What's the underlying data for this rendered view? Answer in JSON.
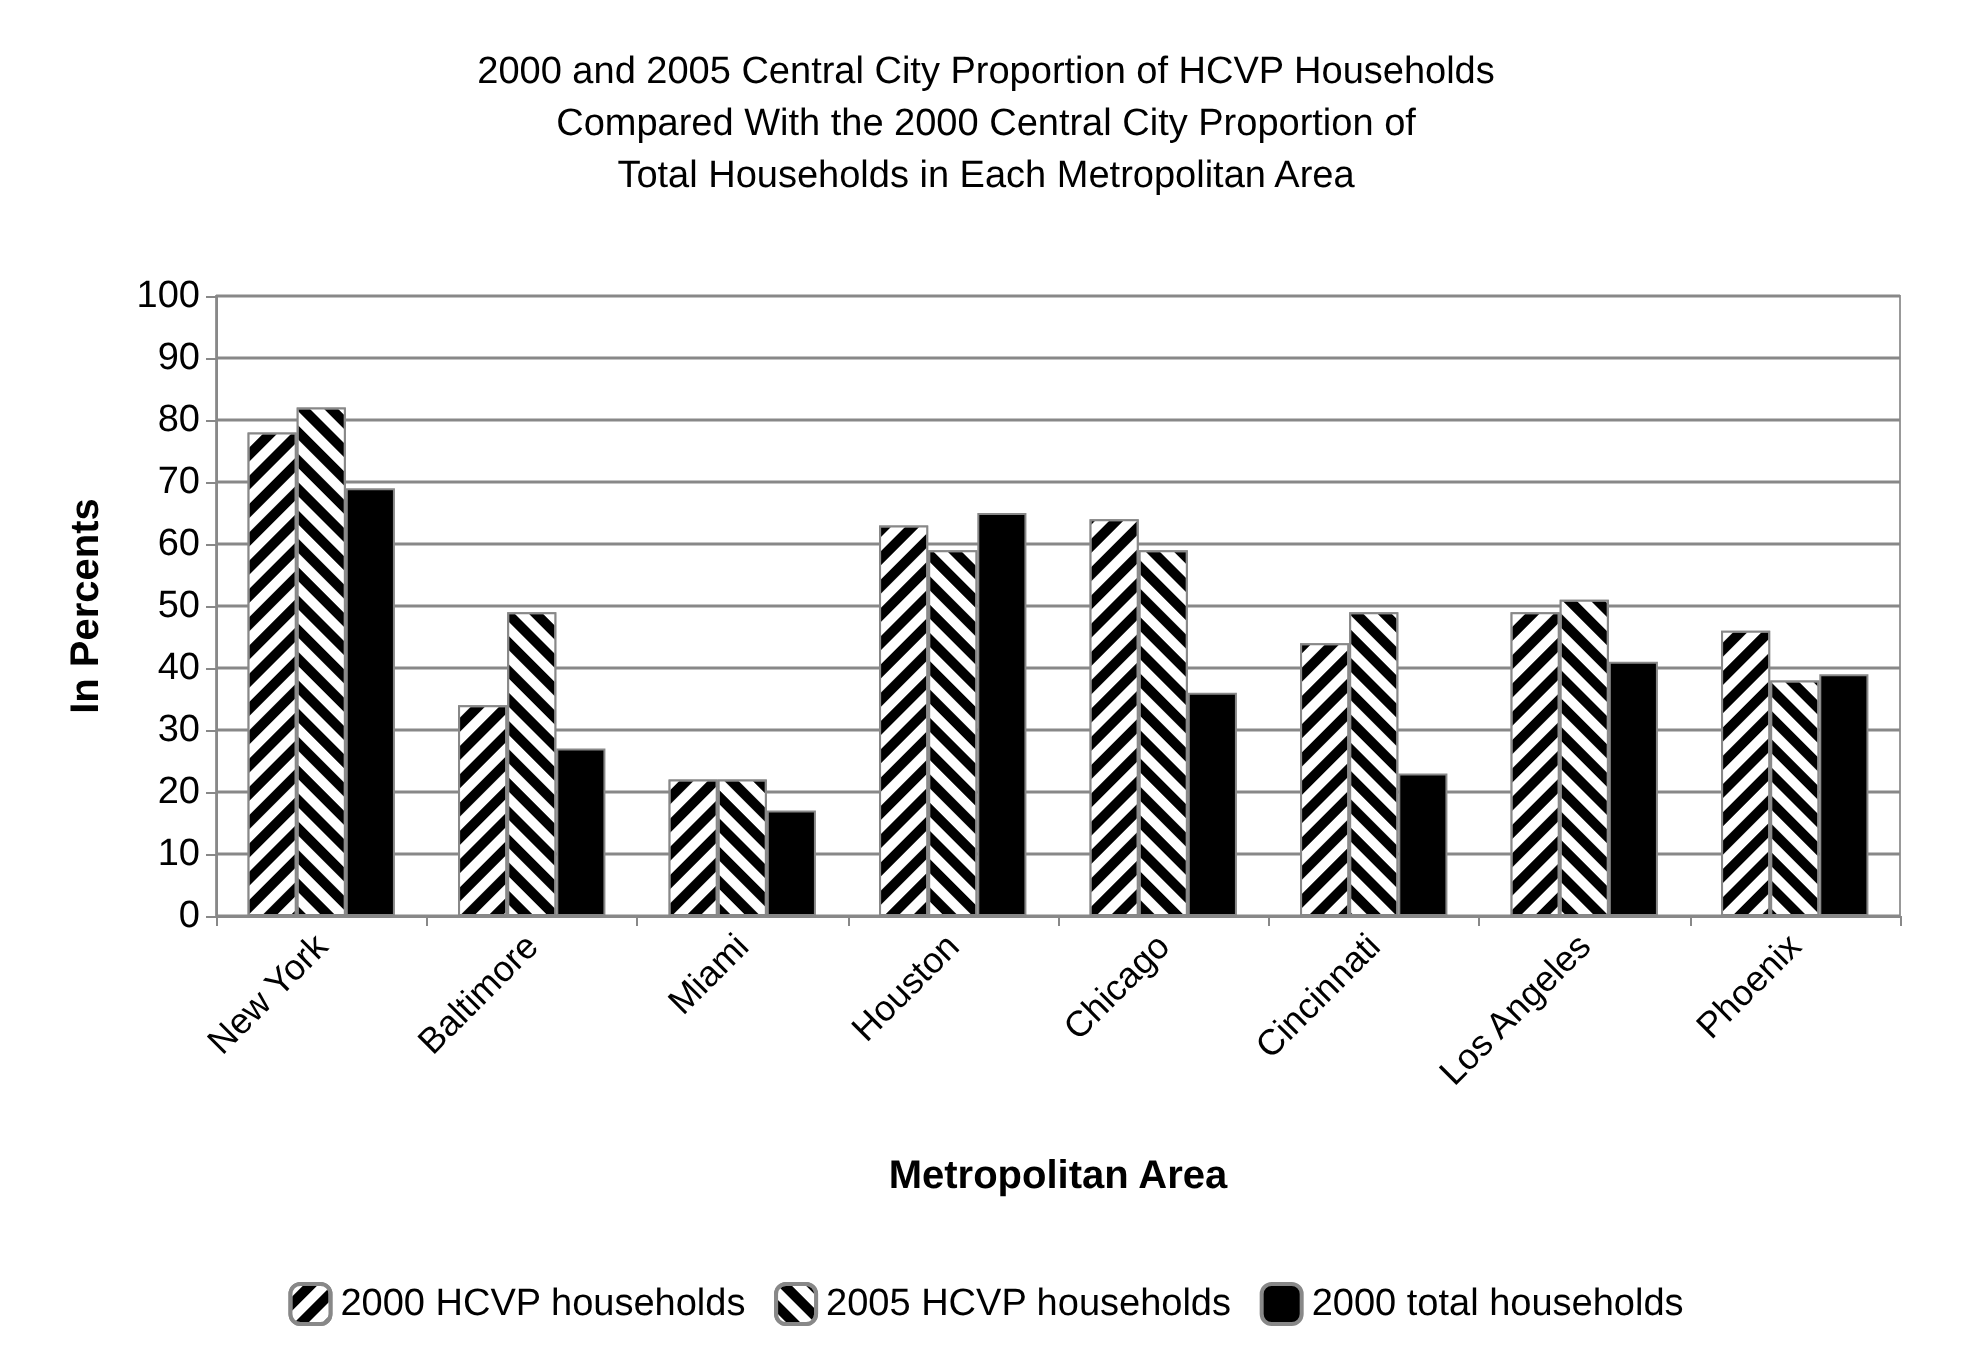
{
  "chart_data": {
    "type": "bar",
    "title": "2000 and 2005 Central City Proportion of HCVP Households\nCompared With the 2000 Central City Proportion of\nTotal Households in Each Metropolitan Area",
    "xlabel": "Metropolitan Area",
    "ylabel": "In Percents",
    "categories": [
      "New York",
      "Baltimore",
      "Miami",
      "Houston",
      "Chicago",
      "Cincinnati",
      "Los Angeles",
      "Phoenix"
    ],
    "series": [
      {
        "name": "2000 HCVP households",
        "color": "#000000",
        "values": [
          78,
          34,
          22,
          63,
          64,
          44,
          49,
          46
        ]
      },
      {
        "name": "2005 HCVP households",
        "color": "#000000",
        "values": [
          82,
          49,
          22,
          59,
          59,
          49,
          51,
          38
        ]
      },
      {
        "name": "2000 total households",
        "color": "#000000",
        "values": [
          69,
          27,
          17,
          65,
          36,
          23,
          41,
          39
        ]
      }
    ],
    "ylim": [
      0,
      100
    ],
    "yticks": [
      0,
      10,
      20,
      30,
      40,
      50,
      60,
      70,
      80,
      90,
      100
    ],
    "grid": "y",
    "legend": "bottom"
  }
}
